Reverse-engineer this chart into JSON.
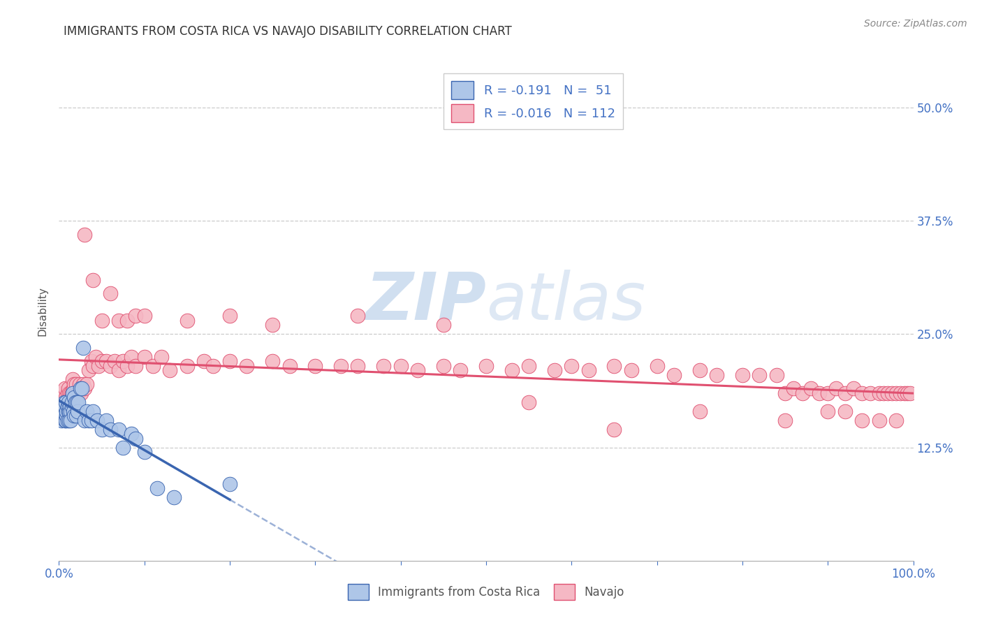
{
  "title": "IMMIGRANTS FROM COSTA RICA VS NAVAJO DISABILITY CORRELATION CHART",
  "source": "Source: ZipAtlas.com",
  "ylabel": "Disability",
  "blue_color": "#aec6e8",
  "pink_color": "#f5b8c4",
  "blue_line_color": "#3a65b0",
  "pink_line_color": "#e05070",
  "blue_R": -0.191,
  "blue_N": 51,
  "pink_R": -0.016,
  "pink_N": 112,
  "legend_label_blue": "Immigrants from Costa Rica",
  "legend_label_pink": "Navajo",
  "tick_color": "#4472c4",
  "title_color": "#333333",
  "watermark_color": "#d0dff0",
  "blue_points_x": [
    0.003,
    0.004,
    0.005,
    0.006,
    0.006,
    0.007,
    0.007,
    0.008,
    0.008,
    0.009,
    0.009,
    0.01,
    0.01,
    0.011,
    0.011,
    0.012,
    0.012,
    0.013,
    0.014,
    0.014,
    0.015,
    0.015,
    0.016,
    0.017,
    0.018,
    0.018,
    0.019,
    0.02,
    0.021,
    0.022,
    0.023,
    0.025,
    0.027,
    0.028,
    0.03,
    0.032,
    0.035,
    0.038,
    0.04,
    0.045,
    0.05,
    0.055,
    0.06,
    0.07,
    0.075,
    0.085,
    0.09,
    0.1,
    0.115,
    0.135,
    0.2
  ],
  "blue_points_y": [
    0.155,
    0.165,
    0.17,
    0.16,
    0.175,
    0.155,
    0.17,
    0.155,
    0.175,
    0.16,
    0.165,
    0.17,
    0.155,
    0.165,
    0.175,
    0.165,
    0.155,
    0.17,
    0.165,
    0.155,
    0.17,
    0.175,
    0.185,
    0.165,
    0.18,
    0.16,
    0.175,
    0.16,
    0.175,
    0.165,
    0.175,
    0.19,
    0.19,
    0.235,
    0.155,
    0.165,
    0.155,
    0.155,
    0.165,
    0.155,
    0.145,
    0.155,
    0.145,
    0.145,
    0.125,
    0.14,
    0.135,
    0.12,
    0.08,
    0.07,
    0.085
  ],
  "pink_points_x": [
    0.003,
    0.005,
    0.007,
    0.008,
    0.009,
    0.01,
    0.011,
    0.012,
    0.013,
    0.014,
    0.015,
    0.016,
    0.017,
    0.018,
    0.019,
    0.02,
    0.022,
    0.024,
    0.026,
    0.028,
    0.03,
    0.032,
    0.035,
    0.038,
    0.04,
    0.043,
    0.046,
    0.05,
    0.055,
    0.06,
    0.065,
    0.07,
    0.075,
    0.08,
    0.085,
    0.09,
    0.1,
    0.11,
    0.12,
    0.13,
    0.15,
    0.17,
    0.18,
    0.2,
    0.22,
    0.25,
    0.27,
    0.3,
    0.33,
    0.35,
    0.38,
    0.4,
    0.42,
    0.45,
    0.47,
    0.5,
    0.53,
    0.55,
    0.58,
    0.6,
    0.62,
    0.65,
    0.67,
    0.7,
    0.72,
    0.75,
    0.77,
    0.8,
    0.82,
    0.84,
    0.85,
    0.86,
    0.87,
    0.88,
    0.89,
    0.9,
    0.91,
    0.92,
    0.93,
    0.94,
    0.95,
    0.96,
    0.965,
    0.97,
    0.975,
    0.98,
    0.985,
    0.99,
    0.993,
    0.996,
    0.03,
    0.04,
    0.05,
    0.06,
    0.07,
    0.08,
    0.09,
    0.1,
    0.15,
    0.2,
    0.25,
    0.35,
    0.45,
    0.55,
    0.65,
    0.75,
    0.85,
    0.9,
    0.92,
    0.94,
    0.96,
    0.98
  ],
  "pink_points_y": [
    0.175,
    0.185,
    0.19,
    0.18,
    0.175,
    0.185,
    0.19,
    0.185,
    0.18,
    0.185,
    0.185,
    0.2,
    0.19,
    0.195,
    0.185,
    0.195,
    0.185,
    0.195,
    0.185,
    0.195,
    0.19,
    0.195,
    0.21,
    0.22,
    0.215,
    0.225,
    0.215,
    0.22,
    0.22,
    0.215,
    0.22,
    0.21,
    0.22,
    0.215,
    0.225,
    0.215,
    0.225,
    0.215,
    0.225,
    0.21,
    0.215,
    0.22,
    0.215,
    0.22,
    0.215,
    0.22,
    0.215,
    0.215,
    0.215,
    0.215,
    0.215,
    0.215,
    0.21,
    0.215,
    0.21,
    0.215,
    0.21,
    0.215,
    0.21,
    0.215,
    0.21,
    0.215,
    0.21,
    0.215,
    0.205,
    0.21,
    0.205,
    0.205,
    0.205,
    0.205,
    0.185,
    0.19,
    0.185,
    0.19,
    0.185,
    0.185,
    0.19,
    0.185,
    0.19,
    0.185,
    0.185,
    0.185,
    0.185,
    0.185,
    0.185,
    0.185,
    0.185,
    0.185,
    0.185,
    0.185,
    0.36,
    0.31,
    0.265,
    0.295,
    0.265,
    0.265,
    0.27,
    0.27,
    0.265,
    0.27,
    0.26,
    0.27,
    0.26,
    0.175,
    0.145,
    0.165,
    0.155,
    0.165,
    0.165,
    0.155,
    0.155,
    0.155
  ]
}
